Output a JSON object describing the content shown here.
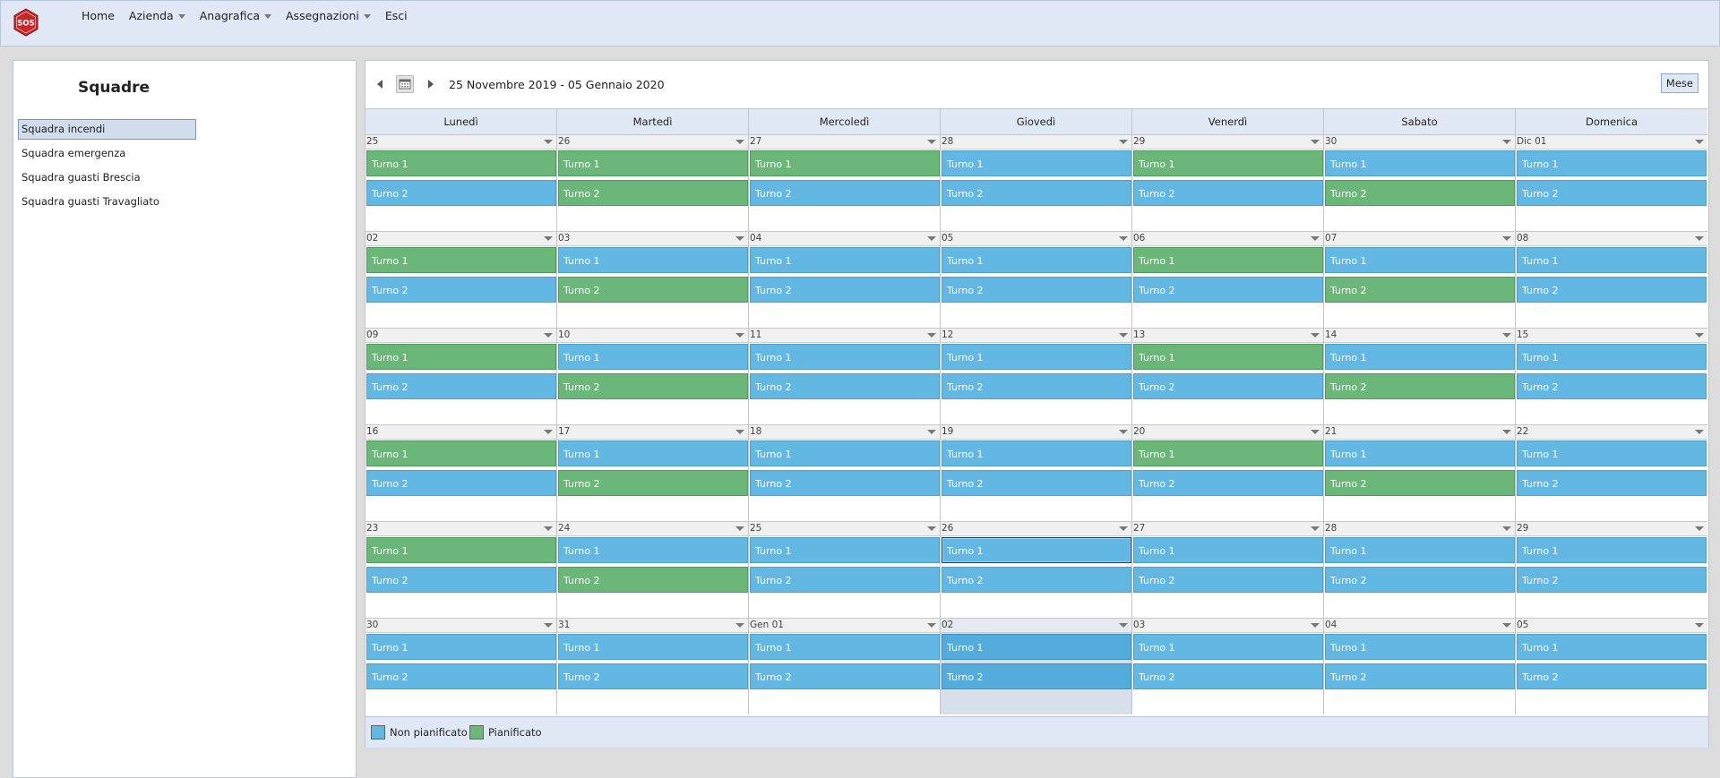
{
  "app": {
    "logo_text": "SOS",
    "nav": [
      {
        "label": "Home",
        "has_dropdown": false
      },
      {
        "label": "Azienda",
        "has_dropdown": true
      },
      {
        "label": "Anagrafica",
        "has_dropdown": true
      },
      {
        "label": "Assegnazioni",
        "has_dropdown": true
      },
      {
        "label": "Esci",
        "has_dropdown": false
      }
    ]
  },
  "sidebar": {
    "title": "Squadre",
    "items": [
      {
        "label": "Squadra incendi",
        "selected": true
      },
      {
        "label": "Squadra emergenza",
        "selected": false
      },
      {
        "label": "Squadra guasti Brescia",
        "selected": false
      },
      {
        "label": "Squadra guasti Travagliato",
        "selected": false
      }
    ]
  },
  "calendar": {
    "range_label": "25 Novembre 2019 - 05 Gennaio 2020",
    "view_button": "Mese",
    "weekdays": [
      "Lunedì",
      "Martedì",
      "Mercoledì",
      "Giovedì",
      "Venerdì",
      "Sabato",
      "Domenica"
    ],
    "colors": {
      "non_pianificato": "#63b8e3",
      "pianificato": "#6bb77a"
    },
    "weeks": [
      {
        "days": [
          {
            "label": "25",
            "shifts": [
              {
                "name": "Turno 1",
                "status": "p"
              },
              {
                "name": "Turno 2",
                "status": "np"
              }
            ]
          },
          {
            "label": "26",
            "shifts": [
              {
                "name": "Turno 1",
                "status": "p"
              },
              {
                "name": "Turno 2",
                "status": "p"
              }
            ]
          },
          {
            "label": "27",
            "shifts": [
              {
                "name": "Turno 1",
                "status": "p"
              },
              {
                "name": "Turno 2",
                "status": "np"
              }
            ]
          },
          {
            "label": "28",
            "shifts": [
              {
                "name": "Turno 1",
                "status": "np"
              },
              {
                "name": "Turno 2",
                "status": "np"
              }
            ]
          },
          {
            "label": "29",
            "shifts": [
              {
                "name": "Turno 1",
                "status": "p"
              },
              {
                "name": "Turno 2",
                "status": "np"
              }
            ]
          },
          {
            "label": "30",
            "shifts": [
              {
                "name": "Turno 1",
                "status": "np"
              },
              {
                "name": "Turno 2",
                "status": "p"
              }
            ]
          },
          {
            "label": "Dic 01",
            "shifts": [
              {
                "name": "Turno 1",
                "status": "np"
              },
              {
                "name": "Turno 2",
                "status": "np"
              }
            ]
          }
        ]
      },
      {
        "days": [
          {
            "label": "02",
            "shifts": [
              {
                "name": "Turno 1",
                "status": "p"
              },
              {
                "name": "Turno 2",
                "status": "np"
              }
            ]
          },
          {
            "label": "03",
            "shifts": [
              {
                "name": "Turno 1",
                "status": "np"
              },
              {
                "name": "Turno 2",
                "status": "p"
              }
            ]
          },
          {
            "label": "04",
            "shifts": [
              {
                "name": "Turno 1",
                "status": "np"
              },
              {
                "name": "Turno 2",
                "status": "np"
              }
            ]
          },
          {
            "label": "05",
            "shifts": [
              {
                "name": "Turno 1",
                "status": "np"
              },
              {
                "name": "Turno 2",
                "status": "np"
              }
            ]
          },
          {
            "label": "06",
            "shifts": [
              {
                "name": "Turno 1",
                "status": "p"
              },
              {
                "name": "Turno 2",
                "status": "np"
              }
            ]
          },
          {
            "label": "07",
            "shifts": [
              {
                "name": "Turno 1",
                "status": "np"
              },
              {
                "name": "Turno 2",
                "status": "p"
              }
            ]
          },
          {
            "label": "08",
            "shifts": [
              {
                "name": "Turno 1",
                "status": "np"
              },
              {
                "name": "Turno 2",
                "status": "np"
              }
            ]
          }
        ]
      },
      {
        "days": [
          {
            "label": "09",
            "shifts": [
              {
                "name": "Turno 1",
                "status": "p"
              },
              {
                "name": "Turno 2",
                "status": "np"
              }
            ]
          },
          {
            "label": "10",
            "shifts": [
              {
                "name": "Turno 1",
                "status": "np"
              },
              {
                "name": "Turno 2",
                "status": "p"
              }
            ]
          },
          {
            "label": "11",
            "shifts": [
              {
                "name": "Turno 1",
                "status": "np"
              },
              {
                "name": "Turno 2",
                "status": "np"
              }
            ]
          },
          {
            "label": "12",
            "shifts": [
              {
                "name": "Turno 1",
                "status": "np"
              },
              {
                "name": "Turno 2",
                "status": "np"
              }
            ]
          },
          {
            "label": "13",
            "shifts": [
              {
                "name": "Turno 1",
                "status": "p"
              },
              {
                "name": "Turno 2",
                "status": "np"
              }
            ]
          },
          {
            "label": "14",
            "shifts": [
              {
                "name": "Turno 1",
                "status": "np"
              },
              {
                "name": "Turno 2",
                "status": "p"
              }
            ]
          },
          {
            "label": "15",
            "shifts": [
              {
                "name": "Turno 1",
                "status": "np"
              },
              {
                "name": "Turno 2",
                "status": "np"
              }
            ]
          }
        ]
      },
      {
        "days": [
          {
            "label": "16",
            "shifts": [
              {
                "name": "Turno 1",
                "status": "p"
              },
              {
                "name": "Turno 2",
                "status": "np"
              }
            ]
          },
          {
            "label": "17",
            "shifts": [
              {
                "name": "Turno 1",
                "status": "np"
              },
              {
                "name": "Turno 2",
                "status": "p"
              }
            ]
          },
          {
            "label": "18",
            "shifts": [
              {
                "name": "Turno 1",
                "status": "np"
              },
              {
                "name": "Turno 2",
                "status": "np"
              }
            ]
          },
          {
            "label": "19",
            "shifts": [
              {
                "name": "Turno 1",
                "status": "np"
              },
              {
                "name": "Turno 2",
                "status": "np"
              }
            ]
          },
          {
            "label": "20",
            "shifts": [
              {
                "name": "Turno 1",
                "status": "p"
              },
              {
                "name": "Turno 2",
                "status": "np"
              }
            ]
          },
          {
            "label": "21",
            "shifts": [
              {
                "name": "Turno 1",
                "status": "np"
              },
              {
                "name": "Turno 2",
                "status": "p"
              }
            ]
          },
          {
            "label": "22",
            "shifts": [
              {
                "name": "Turno 1",
                "status": "np"
              },
              {
                "name": "Turno 2",
                "status": "np"
              }
            ]
          }
        ]
      },
      {
        "days": [
          {
            "label": "23",
            "shifts": [
              {
                "name": "Turno 1",
                "status": "p"
              },
              {
                "name": "Turno 2",
                "status": "np"
              }
            ]
          },
          {
            "label": "24",
            "shifts": [
              {
                "name": "Turno 1",
                "status": "np"
              },
              {
                "name": "Turno 2",
                "status": "p"
              }
            ]
          },
          {
            "label": "25",
            "shifts": [
              {
                "name": "Turno 1",
                "status": "np"
              },
              {
                "name": "Turno 2",
                "status": "np"
              }
            ]
          },
          {
            "label": "26",
            "shifts": [
              {
                "name": "Turno 1",
                "status": "np",
                "outlined": true
              },
              {
                "name": "Turno 2",
                "status": "np"
              }
            ]
          },
          {
            "label": "27",
            "shifts": [
              {
                "name": "Turno 1",
                "status": "np"
              },
              {
                "name": "Turno 2",
                "status": "np"
              }
            ]
          },
          {
            "label": "28",
            "shifts": [
              {
                "name": "Turno 1",
                "status": "np"
              },
              {
                "name": "Turno 2",
                "status": "np"
              }
            ]
          },
          {
            "label": "29",
            "shifts": [
              {
                "name": "Turno 1",
                "status": "np"
              },
              {
                "name": "Turno 2",
                "status": "np"
              }
            ]
          }
        ]
      },
      {
        "days": [
          {
            "label": "30",
            "shifts": [
              {
                "name": "Turno 1",
                "status": "np"
              },
              {
                "name": "Turno 2",
                "status": "np"
              }
            ]
          },
          {
            "label": "31",
            "shifts": [
              {
                "name": "Turno 1",
                "status": "np"
              },
              {
                "name": "Turno 2",
                "status": "np"
              }
            ]
          },
          {
            "label": "Gen 01",
            "shifts": [
              {
                "name": "Turno 1",
                "status": "np"
              },
              {
                "name": "Turno 2",
                "status": "np"
              }
            ]
          },
          {
            "label": "02",
            "highlight": true,
            "shifts": [
              {
                "name": "Turno 1",
                "status": "np"
              },
              {
                "name": "Turno 2",
                "status": "np"
              }
            ]
          },
          {
            "label": "03",
            "shifts": [
              {
                "name": "Turno 1",
                "status": "np"
              },
              {
                "name": "Turno 2",
                "status": "np"
              }
            ]
          },
          {
            "label": "04",
            "shifts": [
              {
                "name": "Turno 1",
                "status": "np"
              },
              {
                "name": "Turno 2",
                "status": "np"
              }
            ]
          },
          {
            "label": "05",
            "shifts": [
              {
                "name": "Turno 1",
                "status": "np"
              },
              {
                "name": "Turno 2",
                "status": "np"
              }
            ]
          }
        ]
      }
    ],
    "legend": [
      {
        "label": "Non pianificato",
        "color": "#63b8e3"
      },
      {
        "label": "Pianificato",
        "color": "#6bb77a"
      }
    ]
  }
}
